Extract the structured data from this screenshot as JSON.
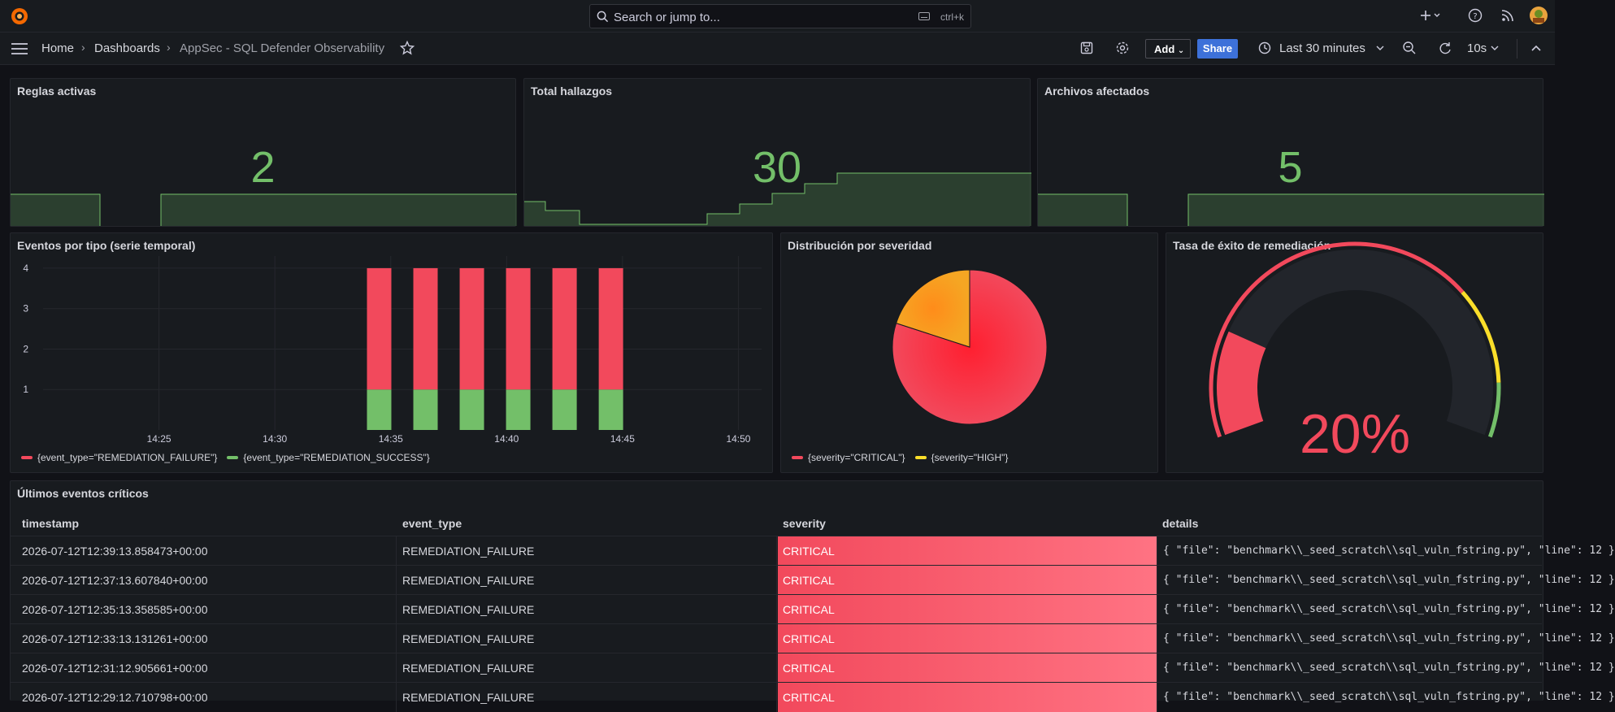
{
  "topbar": {
    "search_placeholder": "Search or jump to...",
    "search_shortcut": "ctrl+k",
    "icons": [
      "grafana-logo-icon",
      "search-icon",
      "keyboard-icon",
      "plus-icon",
      "help-icon",
      "rss-icon",
      "user-avatar"
    ]
  },
  "nav": {
    "breadcrumbs": [
      "Home",
      "Dashboards",
      "AppSec - SQL Defender Observability"
    ],
    "add_label": "Add",
    "share_label": "Share",
    "time_range": "Last 30 minutes",
    "refresh_interval": "10s"
  },
  "colors": {
    "green": "#73bf69",
    "red": "#f2495c",
    "orange": "#ff9830",
    "yellow": "#fade2a",
    "bg": "#111217",
    "panel": "#181b1f",
    "primary": "#3d71d9"
  },
  "stats": [
    {
      "title": "Reglas activas",
      "value": "2"
    },
    {
      "title": "Total hallazgos",
      "value": "30"
    },
    {
      "title": "Archivos afectados",
      "value": "5"
    }
  ],
  "events_panel": {
    "title": "Eventos por tipo (serie temporal)",
    "legend": [
      "{event_type=\"REMEDIATION_FAILURE\"}",
      "{event_type=\"REMEDIATION_SUCCESS\"}"
    ]
  },
  "pie_panel": {
    "title": "Distribución por severidad",
    "legend": [
      "{severity=\"CRITICAL\"}",
      "{severity=\"HIGH\"}"
    ]
  },
  "gauge_panel": {
    "title": "Tasa de éxito de remediación",
    "value_text": "20%",
    "value": 20
  },
  "chart_data": [
    {
      "type": "bar",
      "x_ticks": [
        "14:25",
        "14:30",
        "14:35",
        "14:40",
        "14:45",
        "14:50"
      ],
      "y_ticks": [
        "1",
        "2",
        "3",
        "4"
      ],
      "ylim": [
        0,
        4.3
      ],
      "x_minutes": [
        14.5,
        16.5,
        18.5,
        20.5,
        22.5,
        24.5
      ],
      "series": [
        {
          "name": "{event_type=\"REMEDIATION_FAILURE\"}",
          "values": [
            3,
            3,
            3,
            3,
            3,
            3
          ]
        },
        {
          "name": "{event_type=\"REMEDIATION_SUCCESS\"}",
          "values": [
            1,
            1,
            1,
            1,
            1,
            1
          ]
        }
      ],
      "stacked": true,
      "grid": true,
      "legend_position": "bottom"
    },
    {
      "type": "pie",
      "labels": [
        "{severity=\"CRITICAL\"}",
        "{severity=\"HIGH\"}"
      ],
      "values": [
        24,
        6
      ]
    }
  ],
  "table": {
    "title": "Últimos eventos críticos",
    "columns": [
      "timestamp",
      "event_type",
      "severity",
      "details"
    ],
    "rows": [
      [
        "2026-07-12T12:39:13.858473+00:00",
        "REMEDIATION_FAILURE",
        "CRITICAL",
        "{ \"file\": \"benchmark\\\\_seed_scratch\\\\sql_vuln_fstring.py\", \"line\": 12 }"
      ],
      [
        "2026-07-12T12:37:13.607840+00:00",
        "REMEDIATION_FAILURE",
        "CRITICAL",
        "{ \"file\": \"benchmark\\\\_seed_scratch\\\\sql_vuln_fstring.py\", \"line\": 12 }"
      ],
      [
        "2026-07-12T12:35:13.358585+00:00",
        "REMEDIATION_FAILURE",
        "CRITICAL",
        "{ \"file\": \"benchmark\\\\_seed_scratch\\\\sql_vuln_fstring.py\", \"line\": 12 }"
      ],
      [
        "2026-07-12T12:33:13.131261+00:00",
        "REMEDIATION_FAILURE",
        "CRITICAL",
        "{ \"file\": \"benchmark\\\\_seed_scratch\\\\sql_vuln_fstring.py\", \"line\": 12 }"
      ],
      [
        "2026-07-12T12:31:12.905661+00:00",
        "REMEDIATION_FAILURE",
        "CRITICAL",
        "{ \"file\": \"benchmark\\\\_seed_scratch\\\\sql_vuln_fstring.py\", \"line\": 12 }"
      ],
      [
        "2026-07-12T12:29:12.710798+00:00",
        "REMEDIATION_FAILURE",
        "CRITICAL",
        "{ \"file\": \"benchmark\\\\_seed_scratch\\\\sql_vuln_fstring.py\", \"line\": 12 }"
      ]
    ]
  }
}
